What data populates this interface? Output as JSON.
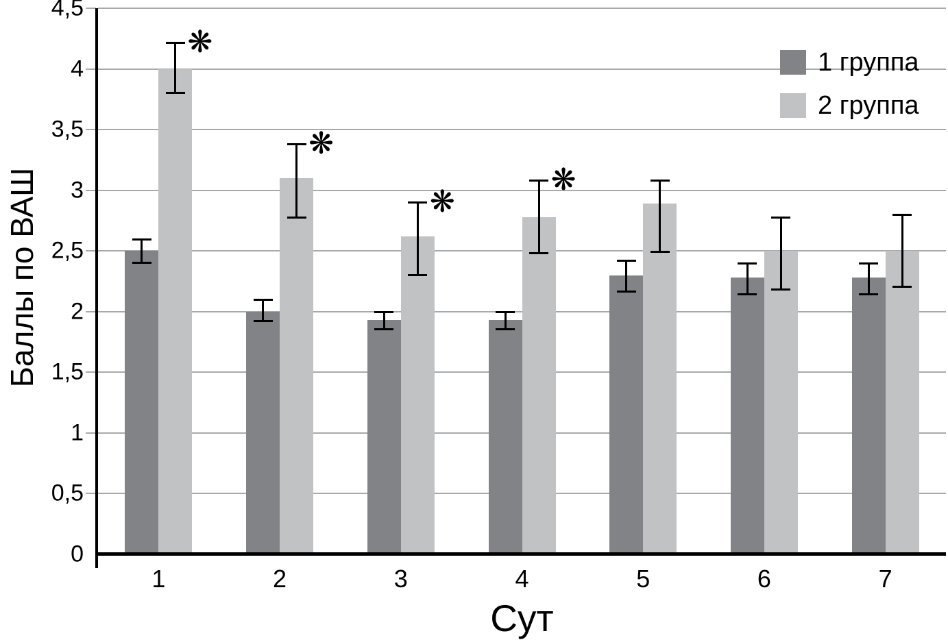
{
  "chart_data": {
    "type": "bar",
    "title": "",
    "ylabel": "Баллы по ВАШ",
    "xlabel": "Сут",
    "categories": [
      "1",
      "2",
      "3",
      "4",
      "5",
      "6",
      "7"
    ],
    "ylim": [
      0,
      4.5
    ],
    "ytick_step": 0.5,
    "ytick_labels": [
      "0",
      "0,5",
      "1",
      "1,5",
      "2",
      "2,5",
      "3",
      "3,5",
      "4",
      "4,5"
    ],
    "grid": true,
    "legend_position": "top-right",
    "significance_marker": "❋",
    "colors": {
      "series1": "#828386",
      "series2": "#c1c2c4",
      "gridline": "#a8a9ab",
      "axis": "#000000",
      "error_bar": "#000000"
    },
    "series": [
      {
        "name": "1 группа",
        "color": "#828386",
        "values": [
          2.5,
          2.0,
          1.93,
          1.93,
          2.3,
          2.28,
          2.28
        ],
        "error_top": [
          2.6,
          2.1,
          2.0,
          2.0,
          2.42,
          2.4,
          2.4
        ],
        "error_bottom": [
          2.4,
          1.92,
          1.85,
          1.85,
          2.16,
          2.14,
          2.14
        ],
        "significant": [
          false,
          false,
          false,
          false,
          false,
          false,
          false
        ]
      },
      {
        "name": "2 группа",
        "color": "#c1c2c4",
        "values": [
          4.0,
          3.1,
          2.62,
          2.78,
          2.89,
          2.5,
          2.5
        ],
        "error_top": [
          4.22,
          3.38,
          2.9,
          3.08,
          3.08,
          2.78,
          2.8
        ],
        "error_bottom": [
          3.8,
          2.77,
          2.3,
          2.48,
          2.49,
          2.18,
          2.2
        ],
        "significant": [
          true,
          true,
          true,
          true,
          false,
          false,
          false
        ]
      }
    ]
  }
}
